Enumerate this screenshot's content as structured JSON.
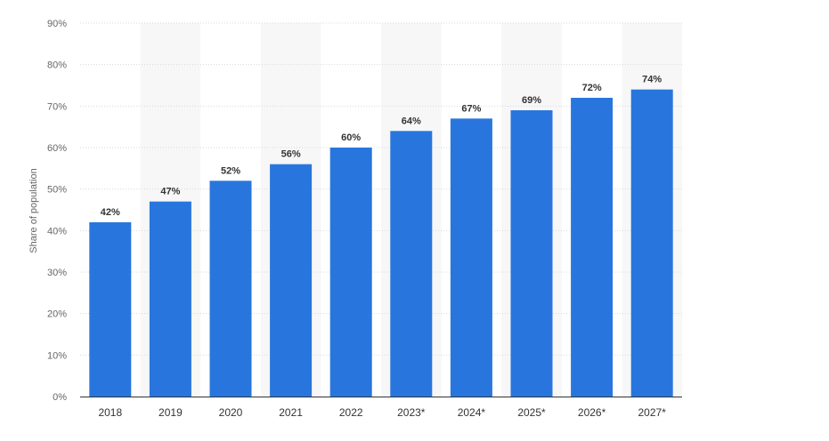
{
  "chart_data": {
    "type": "bar",
    "title": "",
    "xlabel": "",
    "ylabel": "Share of population",
    "categories": [
      "2018",
      "2019",
      "2020",
      "2021",
      "2022",
      "2023*",
      "2024*",
      "2025*",
      "2026*",
      "2027*"
    ],
    "values": [
      42,
      47,
      52,
      56,
      60,
      64,
      67,
      69,
      72,
      74
    ],
    "data_labels": [
      "42%",
      "47%",
      "52%",
      "56%",
      "60%",
      "64%",
      "67%",
      "69%",
      "72%",
      "74%"
    ],
    "ylim": [
      0,
      90
    ],
    "yticks": [
      0,
      10,
      20,
      30,
      40,
      50,
      60,
      70,
      80,
      90
    ],
    "ytick_labels": [
      "0%",
      "10%",
      "20%",
      "30%",
      "40%",
      "50%",
      "60%",
      "70%",
      "80%",
      "90%"
    ],
    "grid": true,
    "legend": "none",
    "colors": {
      "bar": "#2876dd",
      "band": "#f7f7f7",
      "grid": "#d9d9d9",
      "axis": "#333333"
    }
  }
}
